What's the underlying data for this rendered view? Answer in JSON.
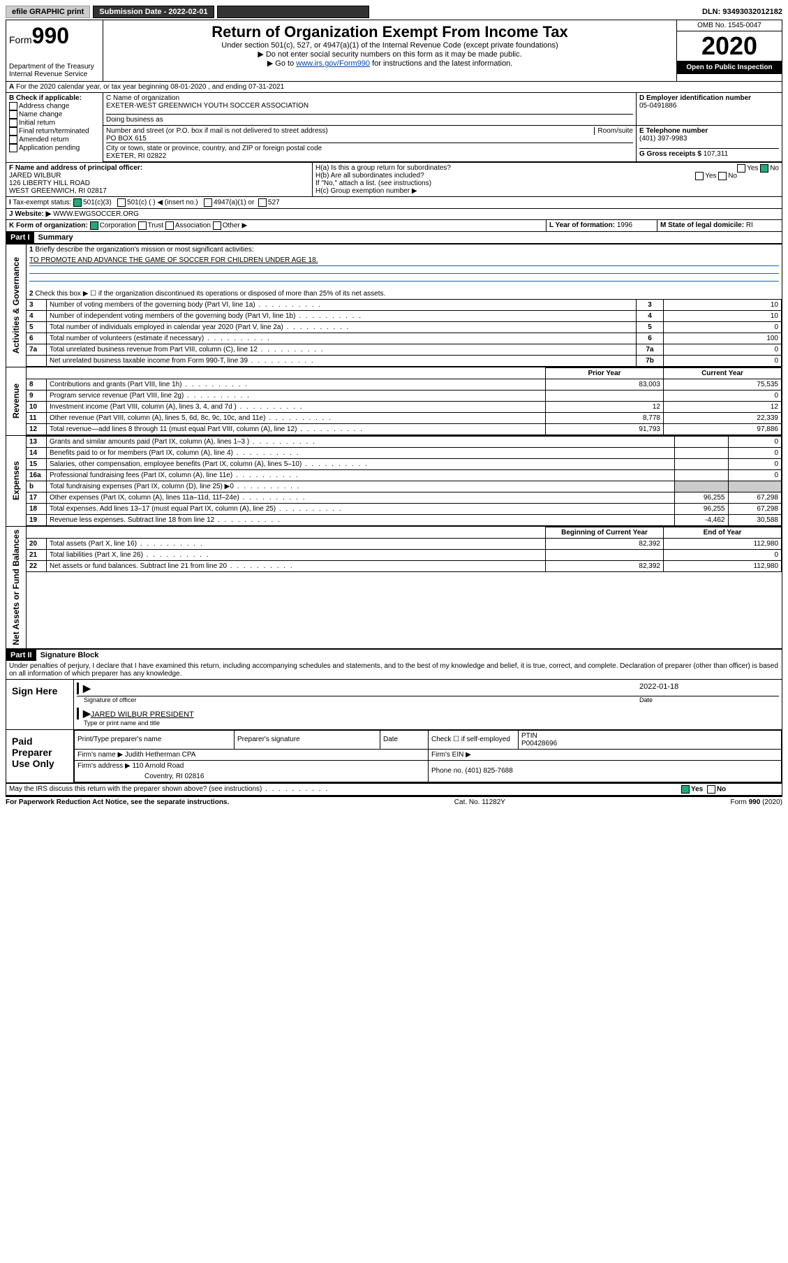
{
  "topbar": {
    "efile": "efile GRAPHIC print",
    "submission_label": "Submission Date - 2022-02-01",
    "dln": "DLN: 93493032012182"
  },
  "header": {
    "form_prefix": "Form",
    "form_num": "990",
    "dept": "Department of the Treasury\nInternal Revenue Service",
    "title": "Return of Organization Exempt From Income Tax",
    "sub1": "Under section 501(c), 527, or 4947(a)(1) of the Internal Revenue Code (except private foundations)",
    "sub2": "▶ Do not enter social security numbers on this form as it may be made public.",
    "sub3a": "▶ Go to ",
    "sub3_link": "www.irs.gov/Form990",
    "sub3b": " for instructions and the latest information.",
    "omb": "OMB No. 1545-0047",
    "year": "2020",
    "open": "Open to Public Inspection"
  },
  "periodA": "For the 2020 calendar year, or tax year beginning 08-01-2020     , and ending 07-31-2021",
  "boxB": {
    "title": "B Check if applicable:",
    "opts": [
      "Address change",
      "Name change",
      "Initial return",
      "Final return/terminated",
      "Amended return",
      "Application pending"
    ]
  },
  "boxC": {
    "name_lbl": "C Name of organization",
    "name": "EXETER-WEST GREENWICH YOUTH SOCCER ASSOCIATION",
    "dba": "Doing business as",
    "addr_lbl": "Number and street (or P.O. box if mail is not delivered to street address)",
    "room": "Room/suite",
    "addr": "PO BOX 615",
    "city_lbl": "City or town, state or province, country, and ZIP or foreign postal code",
    "city": "EXETER, RI  02822"
  },
  "boxD": {
    "lbl": "D Employer identification number",
    "val": "05-0491886"
  },
  "boxE": {
    "lbl": "E Telephone number",
    "val": "(401) 397-9983"
  },
  "boxG": {
    "lbl": "G Gross receipts $",
    "val": "107,311"
  },
  "boxF": {
    "lbl": "F  Name and address of principal officer:",
    "name": "JARED WILBUR",
    "addr1": "126 LIBERTY HILL ROAD",
    "addr2": "WEST GREENWICH, RI  02817"
  },
  "boxH": {
    "a": "H(a)  Is this a group return for subordinates?",
    "a_no": "No",
    "a_yes": "Yes",
    "b": "H(b)  Are all subordinates included?",
    "b_note": "If \"No,\" attach a list. (see instructions)",
    "c": "H(c)  Group exemption number ▶"
  },
  "boxI": {
    "lbl": "Tax-exempt status:",
    "o1": "501(c)(3)",
    "o2": "501(c) (  ) ◀ (insert no.)",
    "o3": "4947(a)(1) or",
    "o4": "527"
  },
  "boxJ": {
    "lbl": "Website: ▶",
    "val": "WWW.EWGSOCCER.ORG"
  },
  "boxK": {
    "lbl": "K Form of organization:",
    "o1": "Corporation",
    "o2": "Trust",
    "o3": "Association",
    "o4": "Other ▶"
  },
  "boxL": {
    "lbl": "L Year of formation:",
    "val": "1996"
  },
  "boxM": {
    "lbl": "M State of legal domicile:",
    "val": "RI"
  },
  "part1": {
    "hdr": "Part I",
    "title": "Summary"
  },
  "summary": {
    "l1": "Briefly describe the organization's mission or most significant activities:",
    "l1v": "TO PROMOTE AND ADVANCE THE GAME OF SOCCER FOR CHILDREN UNDER AGE 18.",
    "l2": "Check this box ▶ ☐  if the organization discontinued its operations or disposed of more than 25% of its net assets.",
    "rows": [
      {
        "n": "3",
        "t": "Number of voting members of the governing body (Part VI, line 1a)",
        "b": "3",
        "v": "10"
      },
      {
        "n": "4",
        "t": "Number of independent voting members of the governing body (Part VI, line 1b)",
        "b": "4",
        "v": "10"
      },
      {
        "n": "5",
        "t": "Total number of individuals employed in calendar year 2020 (Part V, line 2a)",
        "b": "5",
        "v": "0"
      },
      {
        "n": "6",
        "t": "Total number of volunteers (estimate if necessary)",
        "b": "6",
        "v": "100"
      },
      {
        "n": "7a",
        "t": "Total unrelated business revenue from Part VIII, column (C), line 12",
        "b": "7a",
        "v": "0"
      },
      {
        "n": "",
        "t": "Net unrelated business taxable income from Form 990-T, line 39",
        "b": "7b",
        "v": "0"
      }
    ]
  },
  "sections": {
    "side1": "Activities & Governance",
    "side2": "Revenue",
    "side3": "Expenses",
    "side4": "Net Assets or Fund Balances",
    "col_prior": "Prior Year",
    "col_curr": "Current Year",
    "col_beg": "Beginning of Current Year",
    "col_end": "End of Year"
  },
  "revenue": [
    {
      "n": "8",
      "t": "Contributions and grants (Part VIII, line 1h)",
      "p": "83,003",
      "c": "75,535"
    },
    {
      "n": "9",
      "t": "Program service revenue (Part VIII, line 2g)",
      "p": "",
      "c": "0"
    },
    {
      "n": "10",
      "t": "Investment income (Part VIII, column (A), lines 3, 4, and 7d )",
      "p": "12",
      "c": "12"
    },
    {
      "n": "11",
      "t": "Other revenue (Part VIII, column (A), lines 5, 6d, 8c, 9c, 10c, and 11e)",
      "p": "8,778",
      "c": "22,339"
    },
    {
      "n": "12",
      "t": "Total revenue—add lines 8 through 11 (must equal Part VIII, column (A), line 12)",
      "p": "91,793",
      "c": "97,886"
    }
  ],
  "expenses": [
    {
      "n": "13",
      "t": "Grants and similar amounts paid (Part IX, column (A), lines 1–3 )",
      "p": "",
      "c": "0"
    },
    {
      "n": "14",
      "t": "Benefits paid to or for members (Part IX, column (A), line 4)",
      "p": "",
      "c": "0"
    },
    {
      "n": "15",
      "t": "Salaries, other compensation, employee benefits (Part IX, column (A), lines 5–10)",
      "p": "",
      "c": "0"
    },
    {
      "n": "16a",
      "t": "Professional fundraising fees (Part IX, column (A), line 11e)",
      "p": "",
      "c": "0"
    },
    {
      "n": "b",
      "t": "Total fundraising expenses (Part IX, column (D), line 25) ▶0",
      "p": "GRAY",
      "c": "GRAY"
    },
    {
      "n": "17",
      "t": "Other expenses (Part IX, column (A), lines 11a–11d, 11f–24e)",
      "p": "96,255",
      "c": "67,298"
    },
    {
      "n": "18",
      "t": "Total expenses. Add lines 13–17 (must equal Part IX, column (A), line 25)",
      "p": "96,255",
      "c": "67,298"
    },
    {
      "n": "19",
      "t": "Revenue less expenses. Subtract line 18 from line 12",
      "p": "-4,462",
      "c": "30,588"
    }
  ],
  "netassets": [
    {
      "n": "20",
      "t": "Total assets (Part X, line 16)",
      "p": "82,392",
      "c": "112,980"
    },
    {
      "n": "21",
      "t": "Total liabilities (Part X, line 26)",
      "p": "",
      "c": "0"
    },
    {
      "n": "22",
      "t": "Net assets or fund balances. Subtract line 21 from line 20",
      "p": "82,392",
      "c": "112,980"
    }
  ],
  "part2": {
    "hdr": "Part II",
    "title": "Signature Block",
    "decl": "Under penalties of perjury, I declare that I have examined this return, including accompanying schedules and statements, and to the best of my knowledge and belief, it is true, correct, and complete. Declaration of preparer (other than officer) is based on all information of which preparer has any knowledge."
  },
  "sign": {
    "here": "Sign Here",
    "sig_lbl": "Signature of officer",
    "date_lbl": "Date",
    "date": "2022-01-18",
    "name": "JARED WILBUR PRESIDENT",
    "name_lbl": "Type or print name and title"
  },
  "paid": {
    "here": "Paid Preparer Use Only",
    "c1": "Print/Type preparer's name",
    "c2": "Preparer's signature",
    "c3": "Date",
    "c4": "Check ☐ if self-employed",
    "c5": "PTIN",
    "ptin": "P00428696",
    "firm_lbl": "Firm's name  ▶",
    "firm": "Judith Hetherman CPA",
    "ein_lbl": "Firm's EIN ▶",
    "addr_lbl": "Firm's address ▶",
    "addr1": "110 Arnold Road",
    "addr2": "Coventry, RI  02816",
    "phone_lbl": "Phone no.",
    "phone": "(401) 825-7688"
  },
  "discuss": "May the IRS discuss this return with the preparer shown above? (see instructions)",
  "footer": {
    "l": "For Paperwork Reduction Act Notice, see the separate instructions.",
    "m": "Cat. No. 11282Y",
    "r": "Form 990 (2020)"
  }
}
